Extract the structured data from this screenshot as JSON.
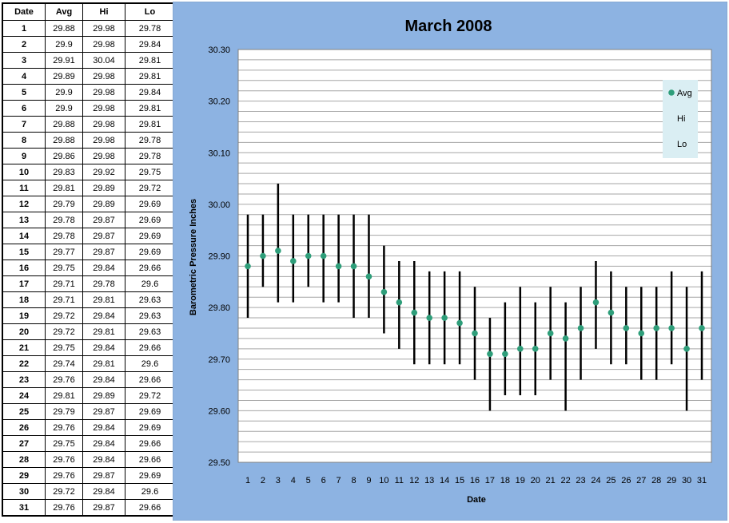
{
  "table": {
    "headers": [
      "Date",
      "Avg",
      "Hi",
      "Lo"
    ],
    "rows": [
      [
        "1",
        "29.88",
        "29.98",
        "29.78"
      ],
      [
        "2",
        "29.9",
        "29.98",
        "29.84"
      ],
      [
        "3",
        "29.91",
        "30.04",
        "29.81"
      ],
      [
        "4",
        "29.89",
        "29.98",
        "29.81"
      ],
      [
        "5",
        "29.9",
        "29.98",
        "29.84"
      ],
      [
        "6",
        "29.9",
        "29.98",
        "29.81"
      ],
      [
        "7",
        "29.88",
        "29.98",
        "29.81"
      ],
      [
        "8",
        "29.88",
        "29.98",
        "29.78"
      ],
      [
        "9",
        "29.86",
        "29.98",
        "29.78"
      ],
      [
        "10",
        "29.83",
        "29.92",
        "29.75"
      ],
      [
        "11",
        "29.81",
        "29.89",
        "29.72"
      ],
      [
        "12",
        "29.79",
        "29.89",
        "29.69"
      ],
      [
        "13",
        "29.78",
        "29.87",
        "29.69"
      ],
      [
        "14",
        "29.78",
        "29.87",
        "29.69"
      ],
      [
        "15",
        "29.77",
        "29.87",
        "29.69"
      ],
      [
        "16",
        "29.75",
        "29.84",
        "29.66"
      ],
      [
        "17",
        "29.71",
        "29.78",
        "29.6"
      ],
      [
        "18",
        "29.71",
        "29.81",
        "29.63"
      ],
      [
        "19",
        "29.72",
        "29.84",
        "29.63"
      ],
      [
        "20",
        "29.72",
        "29.81",
        "29.63"
      ],
      [
        "21",
        "29.75",
        "29.84",
        "29.66"
      ],
      [
        "22",
        "29.74",
        "29.81",
        "29.6"
      ],
      [
        "23",
        "29.76",
        "29.84",
        "29.66"
      ],
      [
        "24",
        "29.81",
        "29.89",
        "29.72"
      ],
      [
        "25",
        "29.79",
        "29.87",
        "29.69"
      ],
      [
        "26",
        "29.76",
        "29.84",
        "29.69"
      ],
      [
        "27",
        "29.75",
        "29.84",
        "29.66"
      ],
      [
        "28",
        "29.76",
        "29.84",
        "29.66"
      ],
      [
        "29",
        "29.76",
        "29.87",
        "29.69"
      ],
      [
        "30",
        "29.72",
        "29.84",
        "29.6"
      ],
      [
        "31",
        "29.76",
        "29.87",
        "29.66"
      ]
    ]
  },
  "colors": {
    "panel_bg": "#8DB3E2",
    "plot_bg": "#FFFFFF",
    "gridline": "#A6A6A6",
    "marker": "#2E9E7A",
    "range_line": "#000000",
    "legend_bg": "#DAEEF3"
  },
  "chart_data": {
    "type": "scatter",
    "title": "March 2008",
    "xlabel": "Date",
    "ylabel": "Barometric Pressure Inches",
    "ylim": [
      29.5,
      30.3
    ],
    "y_major_step": 0.1,
    "y_minor_step": 0.02,
    "y_tick_labels": [
      "29.50",
      "29.60",
      "29.70",
      "29.80",
      "29.90",
      "30.00",
      "30.10",
      "30.20",
      "30.30"
    ],
    "x": [
      1,
      2,
      3,
      4,
      5,
      6,
      7,
      8,
      9,
      10,
      11,
      12,
      13,
      14,
      15,
      16,
      17,
      18,
      19,
      20,
      21,
      22,
      23,
      24,
      25,
      26,
      27,
      28,
      29,
      30,
      31
    ],
    "grid": true,
    "legend_position": "top-right",
    "series": [
      {
        "name": "Avg",
        "values": [
          29.88,
          29.9,
          29.91,
          29.89,
          29.9,
          29.9,
          29.88,
          29.88,
          29.86,
          29.83,
          29.81,
          29.79,
          29.78,
          29.78,
          29.77,
          29.75,
          29.71,
          29.71,
          29.72,
          29.72,
          29.75,
          29.74,
          29.76,
          29.81,
          29.79,
          29.76,
          29.75,
          29.76,
          29.76,
          29.72,
          29.76
        ]
      },
      {
        "name": "Hi",
        "values": [
          29.98,
          29.98,
          30.04,
          29.98,
          29.98,
          29.98,
          29.98,
          29.98,
          29.98,
          29.92,
          29.89,
          29.89,
          29.87,
          29.87,
          29.87,
          29.84,
          29.78,
          29.81,
          29.84,
          29.81,
          29.84,
          29.81,
          29.84,
          29.89,
          29.87,
          29.84,
          29.84,
          29.84,
          29.87,
          29.84,
          29.87
        ]
      },
      {
        "name": "Lo",
        "values": [
          29.78,
          29.84,
          29.81,
          29.81,
          29.84,
          29.81,
          29.81,
          29.78,
          29.78,
          29.75,
          29.72,
          29.69,
          29.69,
          29.69,
          29.69,
          29.66,
          29.6,
          29.63,
          29.63,
          29.63,
          29.66,
          29.6,
          29.66,
          29.72,
          29.69,
          29.69,
          29.66,
          29.66,
          29.69,
          29.6,
          29.66
        ]
      }
    ]
  }
}
